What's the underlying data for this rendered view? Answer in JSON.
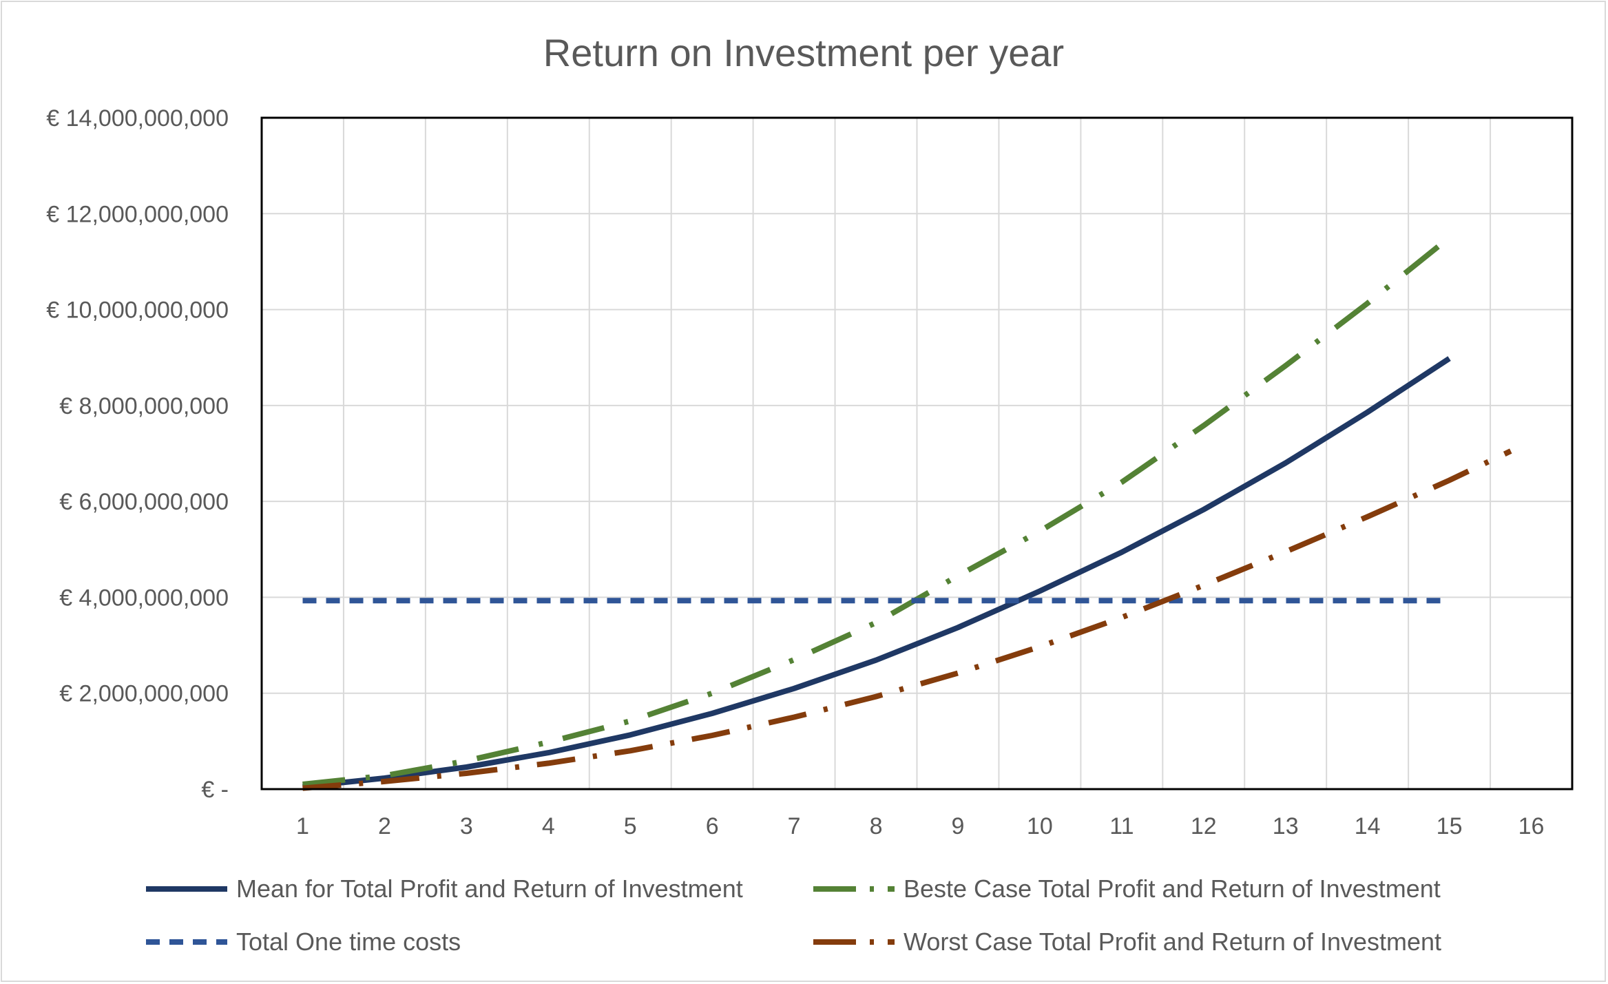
{
  "chart_data": {
    "type": "line",
    "title": "Return on Investment per year",
    "xlabel": "",
    "ylabel": "",
    "categories": [
      1,
      2,
      3,
      4,
      5,
      6,
      7,
      8,
      9,
      10,
      11,
      12,
      13,
      14,
      15,
      16
    ],
    "x_ticks": [
      "1",
      "2",
      "3",
      "4",
      "5",
      "6",
      "7",
      "8",
      "9",
      "10",
      "11",
      "12",
      "13",
      "14",
      "15",
      "16"
    ],
    "ylim": [
      0,
      14000000000
    ],
    "y_ticks": [
      {
        "value": 0,
        "label": "€ -"
      },
      {
        "value": 2000000000,
        "label": "€ 2,000,000,000"
      },
      {
        "value": 4000000000,
        "label": "€ 4,000,000,000"
      },
      {
        "value": 6000000000,
        "label": "€ 6,000,000,000"
      },
      {
        "value": 8000000000,
        "label": "€ 8,000,000,000"
      },
      {
        "value": 10000000000,
        "label": "€ 10,000,000,000"
      },
      {
        "value": 12000000000,
        "label": "€ 12,000,000,000"
      },
      {
        "value": 14000000000,
        "label": "€ 14,000,000,000"
      }
    ],
    "grid": true,
    "legend_position": "bottom",
    "series": [
      {
        "name": "Mean for Total Profit and Return of Investment",
        "color": "#1f3864",
        "style": "solid",
        "x": [
          1,
          2,
          3,
          4,
          5,
          6,
          7,
          8,
          9,
          10,
          11,
          12,
          13,
          14,
          15
        ],
        "values": [
          50000000,
          230000000,
          460000000,
          760000000,
          1130000000,
          1580000000,
          2100000000,
          2690000000,
          3370000000,
          4130000000,
          4940000000,
          5830000000,
          6800000000,
          7860000000,
          8980000000
        ]
      },
      {
        "name": "Beste Case Total Profit and Return of Investment",
        "color": "#548235",
        "style": "dash-dot",
        "x": [
          1,
          2,
          3,
          4,
          5,
          6,
          7,
          8,
          9,
          10,
          11,
          12,
          13,
          14,
          15
        ],
        "values": [
          100000000,
          280000000,
          590000000,
          980000000,
          1420000000,
          2000000000,
          2700000000,
          3470000000,
          4450000000,
          5380000000,
          6400000000,
          7580000000,
          8830000000,
          10130000000,
          11500000000
        ]
      },
      {
        "name": "Total One time costs",
        "color": "#2f5597",
        "style": "dash",
        "x": [
          1,
          15
        ],
        "values": [
          3930000000,
          3930000000
        ]
      },
      {
        "name": "Worst Case Total Profit and Return of Investment",
        "color": "#843c0c",
        "style": "long-dash-dot",
        "x": [
          1,
          2,
          3,
          4,
          5,
          6,
          7,
          8,
          9,
          10,
          11,
          12,
          13,
          14,
          15,
          15.75
        ],
        "values": [
          20000000,
          160000000,
          330000000,
          540000000,
          800000000,
          1120000000,
          1500000000,
          1930000000,
          2420000000,
          2970000000,
          3580000000,
          4250000000,
          4950000000,
          5680000000,
          6440000000,
          7050000000
        ]
      }
    ]
  }
}
